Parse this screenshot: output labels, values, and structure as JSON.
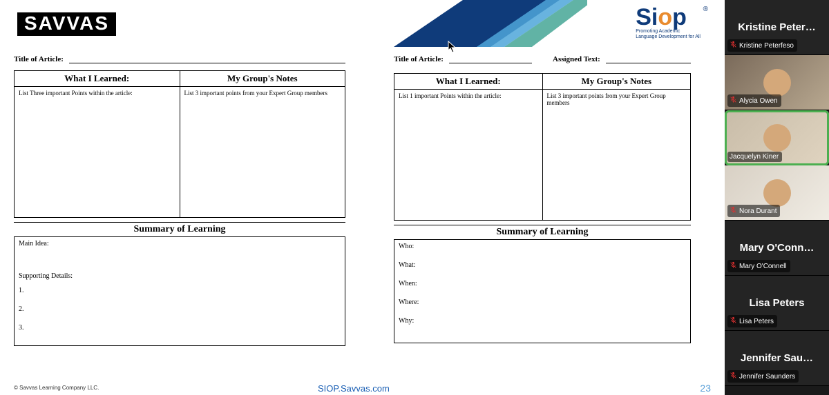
{
  "header": {
    "brand": "SAVVAS",
    "siop": "Siop",
    "siop_tag1": "Promoting Academic",
    "siop_tag2": "Language Development for All",
    "accent_colors": {
      "dark_blue": "#0f3b7a",
      "light_blue": "#4da6d9",
      "teal": "#3aa08f"
    }
  },
  "left_sheet": {
    "title_label": "Title of Article:",
    "col1": "What I Learned:",
    "col2": "My Group's Notes",
    "cell1": "List Three important Points within the article:",
    "cell2": "List 3 important points from your Expert Group members",
    "summary_title": "Summary of Learning",
    "main_idea": "Main Idea:",
    "supporting": "Supporting Details:",
    "n1": "1.",
    "n2": "2.",
    "n3": "3."
  },
  "right_sheet": {
    "title_label": "Title of Article:",
    "assigned_label": "Assigned Text:",
    "col1": "What I Learned:",
    "col2": "My Group's Notes",
    "cell1": "List 1 important Points within the article:",
    "cell2": "List 3 important points from your Expert Group members",
    "summary_title": "Summary of Learning",
    "who": "Who:",
    "what": "What:",
    "when": "When:",
    "where": "Where:",
    "why": "Why:"
  },
  "footer": {
    "copyright": "© Savvas Learning Company LLC.",
    "link": "SIOP.Savvas.com",
    "page": "23"
  },
  "participants": [
    {
      "display": "Kristine Peter…",
      "full": "Kristine Peterfeso",
      "video": false,
      "muted": true,
      "speaking": false
    },
    {
      "display": "",
      "full": "Alycia Owen",
      "video": true,
      "muted": true,
      "speaking": false,
      "variant": "v1"
    },
    {
      "display": "",
      "full": "Jacquelyn Kiner",
      "video": true,
      "muted": false,
      "speaking": true,
      "variant": "v2"
    },
    {
      "display": "",
      "full": "Nora Durant",
      "video": true,
      "muted": true,
      "speaking": false,
      "variant": "v3"
    },
    {
      "display": "Mary O'Conn…",
      "full": "Mary O'Connell",
      "video": false,
      "muted": true,
      "speaking": false
    },
    {
      "display": "Lisa Peters",
      "full": "Lisa Peters",
      "video": false,
      "muted": true,
      "speaking": false
    },
    {
      "display": "Jennifer Sau…",
      "full": "Jennifer Saunders",
      "video": false,
      "muted": true,
      "speaking": false
    }
  ]
}
